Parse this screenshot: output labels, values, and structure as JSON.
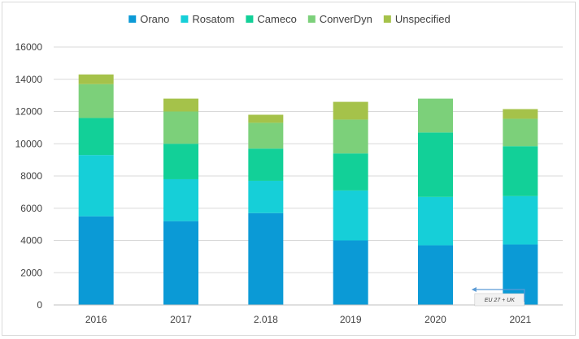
{
  "chart_data": {
    "type": "bar",
    "stacked": true,
    "categories": [
      "2016",
      "2017",
      "2.018",
      "2019",
      "2020",
      "2021"
    ],
    "series": [
      {
        "name": "Orano",
        "color": "#0b9ad6",
        "values": [
          5500,
          5200,
          5700,
          4000,
          3700,
          3750
        ]
      },
      {
        "name": "Rosatom",
        "color": "#16cfd8",
        "values": [
          3800,
          2600,
          2000,
          3100,
          3000,
          3000
        ]
      },
      {
        "name": "Cameco",
        "color": "#12d098",
        "values": [
          2300,
          2200,
          2000,
          2300,
          4000,
          3100
        ]
      },
      {
        "name": "ConverDyn",
        "color": "#7cd07a",
        "values": [
          2100,
          2000,
          1600,
          2100,
          2100,
          1700
        ]
      },
      {
        "name": "Unspecified",
        "color": "#a5c24a",
        "values": [
          600,
          800,
          500,
          1100,
          0,
          600
        ]
      }
    ],
    "yticks": [
      0,
      2000,
      4000,
      6000,
      8000,
      10000,
      12000,
      14000,
      16000
    ],
    "ylim": [
      0,
      16000
    ],
    "grid": true,
    "legend": "top",
    "annotation": {
      "text": "EU 27 + UK",
      "color": "#c65a11",
      "arrow_color": "#5b9bd5"
    }
  }
}
